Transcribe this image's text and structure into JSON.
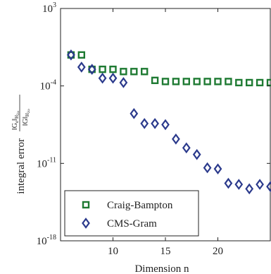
{
  "chart_data": {
    "type": "scatter",
    "title": "",
    "xlabel": "Dimension n",
    "ylabel": "integral error",
    "ylabel_fraction": {
      "numerator_main": "‖G",
      "numerator_sub": "e",
      "numerator_close": "‖",
      "numerator_norm": "H",
      "numerator_norm_sub": "2ω",
      "denominator_main": "‖G‖",
      "denominator_norm": "H",
      "denominator_norm_sub": "2ω"
    },
    "x_scale": "linear",
    "y_scale": "log",
    "xlim": [
      5,
      25
    ],
    "ylim_exponent": [
      -18,
      3
    ],
    "x_ticks": [
      10,
      15,
      20
    ],
    "y_ticks": [
      {
        "base": "10",
        "exp": "3",
        "value_exp": 3
      },
      {
        "base": "10",
        "exp": "-4",
        "value_exp": -4
      },
      {
        "base": "10",
        "exp": "-11",
        "value_exp": -11
      },
      {
        "base": "10",
        "exp": "-18",
        "value_exp": -18
      }
    ],
    "grid": false,
    "legend_position": "bottom-left",
    "series": [
      {
        "name": "Craig-Bampton",
        "marker": "square",
        "color": "#1e7a32",
        "x": [
          6,
          7,
          8,
          9,
          10,
          11,
          12,
          13,
          14,
          15,
          16,
          17,
          18,
          19,
          20,
          21,
          22,
          23,
          24,
          25
        ],
        "y_exp": [
          -1.2,
          -1.2,
          -2.5,
          -2.5,
          -2.5,
          -2.7,
          -2.7,
          -2.7,
          -3.5,
          -3.6,
          -3.6,
          -3.6,
          -3.6,
          -3.6,
          -3.6,
          -3.6,
          -3.7,
          -3.7,
          -3.7,
          -3.7
        ]
      },
      {
        "name": "CMS-Gram",
        "marker": "diamond",
        "color": "#2b3a8c",
        "x": [
          6,
          7,
          8,
          9,
          10,
          11,
          12,
          13,
          14,
          15,
          16,
          17,
          18,
          19,
          20,
          21,
          22,
          23,
          24,
          25
        ],
        "y_exp": [
          -1.2,
          -2.3,
          -2.5,
          -3.3,
          -3.3,
          -3.7,
          -6.5,
          -7.4,
          -7.4,
          -7.5,
          -8.8,
          -9.6,
          -10.2,
          -11.4,
          -11.5,
          -12.8,
          -12.9,
          -13.3,
          -12.9,
          -13.1
        ]
      }
    ]
  }
}
